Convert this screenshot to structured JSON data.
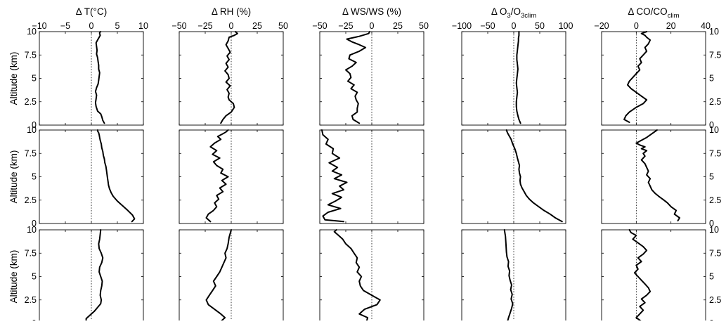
{
  "chart_data": {
    "type": "line",
    "layout": "3 rows x 5 columns of vertical profile panels",
    "ylabel": "Altitude (km)",
    "ylim": [
      0,
      10
    ],
    "yticks": [
      0,
      2.5,
      5,
      7.5,
      10
    ],
    "ytick_labels_left": [
      "0",
      "2.5",
      "5",
      "7.5",
      "10"
    ],
    "ytick_labels_right": [
      "0",
      "2.5",
      "5",
      "7.5",
      "10"
    ],
    "zero_line": "dotted vertical line at x = 0",
    "grid": false,
    "columns": [
      {
        "title": "Δ T(°C)",
        "xlim": [
          -10,
          10
        ],
        "xticks": [
          -10,
          -5,
          0,
          5,
          10
        ],
        "xtick_labels": [
          "−10",
          "−5",
          "0",
          "5",
          "10"
        ]
      },
      {
        "title": "Δ RH (%)",
        "xlim": [
          -50,
          50
        ],
        "xticks": [
          -50,
          -25,
          0,
          25,
          50
        ],
        "xtick_labels": [
          "−50",
          "−25",
          "0",
          "25",
          "50"
        ]
      },
      {
        "title": "Δ WS/WS (%)",
        "xlim": [
          -50,
          50
        ],
        "xticks": [
          -50,
          -25,
          0,
          25,
          50
        ],
        "xtick_labels": [
          "−50",
          "−25",
          "0",
          "25",
          "50"
        ]
      },
      {
        "title": "Δ O3/O3clim",
        "title_parts": [
          "Δ O",
          "3",
          "/O",
          "3clim"
        ],
        "xlim": [
          -100,
          100
        ],
        "xticks": [
          -100,
          -50,
          0,
          50,
          100
        ],
        "xtick_labels": [
          "−100",
          "−50",
          "0",
          "50",
          "100"
        ]
      },
      {
        "title": "Δ CO/COclim",
        "title_parts": [
          "Δ CO/CO",
          "clim"
        ],
        "xlim": [
          -20,
          40
        ],
        "xticks": [
          -20,
          0,
          20,
          40
        ],
        "xtick_labels": [
          "−20",
          "0",
          "20",
          "40"
        ]
      }
    ],
    "series": [
      {
        "row": 1,
        "col": 1,
        "x": [
          2.5,
          2.2,
          2.0,
          1.8,
          1.2,
          0.9,
          0.8,
          0.9,
          1.0,
          0.8,
          1.0,
          1.3,
          1.4,
          1.5,
          1.6,
          1.4,
          1.4,
          1.3,
          1.2,
          1.0,
          1.1,
          1.0,
          0.9,
          1.1,
          1.3,
          1.5,
          1.7,
          1.6,
          1.6,
          1.8
        ],
        "y": [
          0.2,
          0.5,
          0.9,
          1.2,
          1.5,
          2.0,
          2.4,
          2.8,
          3.2,
          3.6,
          4.0,
          4.4,
          4.8,
          5.2,
          5.6,
          6.0,
          6.4,
          6.8,
          7.2,
          7.6,
          8.0,
          8.4,
          8.8,
          9.0,
          9.2,
          9.4,
          9.6,
          9.8,
          9.9,
          10.0
        ]
      },
      {
        "row": 1,
        "col": 2,
        "x": [
          -10,
          -8,
          -5,
          0,
          3,
          2,
          -2,
          -3,
          -2,
          -4,
          -1,
          -5,
          -2,
          -3,
          -6,
          -3,
          -5,
          -2,
          -4,
          -1,
          -3,
          -5,
          -3,
          -2,
          3,
          6,
          4
        ],
        "y": [
          0.2,
          0.6,
          1.0,
          1.4,
          1.9,
          2.3,
          2.7,
          3.0,
          3.4,
          3.8,
          4.2,
          4.6,
          5.0,
          5.4,
          5.8,
          6.2,
          6.6,
          7.0,
          7.4,
          7.8,
          8.2,
          8.6,
          9.0,
          9.4,
          9.6,
          9.8,
          10.0
        ]
      },
      {
        "row": 1,
        "col": 3,
        "x": [
          -12,
          -18,
          -19,
          -14,
          -14,
          -13,
          -15,
          -16,
          -14,
          -20,
          -17,
          -23,
          -20,
          -21,
          -25,
          -19,
          -15,
          -22,
          -21,
          -12,
          -6,
          -12,
          -19,
          -24,
          -12,
          -3,
          -2
        ],
        "y": [
          0.2,
          0.6,
          1.0,
          1.4,
          1.8,
          2.3,
          2.7,
          3.1,
          3.5,
          3.9,
          4.3,
          4.7,
          5.1,
          5.5,
          5.9,
          6.3,
          6.7,
          7.1,
          7.5,
          7.9,
          8.3,
          8.6,
          8.9,
          9.2,
          9.5,
          9.8,
          10.0
        ]
      },
      {
        "row": 1,
        "col": 4,
        "x": [
          13,
          10,
          8,
          6,
          5,
          5,
          6,
          7,
          6,
          5,
          6,
          7,
          8,
          7,
          6,
          6,
          7,
          8,
          9,
          9,
          10,
          10
        ],
        "y": [
          0.2,
          0.6,
          1.0,
          1.5,
          2.0,
          2.5,
          3.0,
          3.5,
          4.0,
          4.5,
          5.0,
          5.5,
          6.0,
          6.5,
          7.0,
          7.5,
          8.0,
          8.5,
          9.0,
          9.3,
          9.6,
          10.0
        ]
      },
      {
        "row": 1,
        "col": 5,
        "x": [
          -4,
          -7,
          -6,
          -4,
          0,
          4,
          6,
          3,
          0,
          -3,
          -5,
          -4,
          -2,
          0,
          2,
          1,
          3,
          2,
          4,
          6,
          5,
          7,
          8,
          6,
          5,
          3,
          6
        ],
        "y": [
          0.3,
          0.6,
          1.0,
          1.4,
          1.9,
          2.3,
          2.7,
          3.1,
          3.5,
          3.9,
          4.3,
          4.7,
          5.1,
          5.5,
          5.9,
          6.3,
          6.7,
          7.1,
          7.5,
          7.9,
          8.3,
          8.7,
          9.1,
          9.4,
          9.6,
          9.8,
          10.0
        ]
      },
      {
        "row": 2,
        "col": 1,
        "x": [
          7.8,
          8.3,
          7.9,
          7.0,
          6.0,
          5.0,
          4.2,
          3.8,
          3.5,
          3.3,
          3.2,
          3.1,
          3.0,
          2.9,
          2.8,
          2.6,
          2.5,
          2.3,
          2.2,
          2.0,
          1.9,
          1.7,
          1.6,
          1.5,
          1.4,
          1.3,
          1.2,
          1.2
        ],
        "y": [
          0.2,
          0.5,
          0.9,
          1.4,
          1.9,
          2.4,
          2.9,
          3.3,
          3.7,
          4.1,
          4.5,
          4.9,
          5.3,
          5.7,
          6.1,
          6.5,
          6.9,
          7.3,
          7.7,
          8.1,
          8.5,
          8.9,
          9.2,
          9.5,
          9.7,
          9.8,
          9.9,
          10.0
        ]
      },
      {
        "row": 2,
        "col": 2,
        "x": [
          -20,
          -24,
          -22,
          -17,
          -14,
          -16,
          -12,
          -14,
          -8,
          -11,
          -5,
          -9,
          -3,
          -10,
          -8,
          -14,
          -17,
          -11,
          -18,
          -14,
          -20,
          -16,
          -10,
          -13,
          -8,
          -5,
          -3
        ],
        "y": [
          0.2,
          0.6,
          1.0,
          1.4,
          1.8,
          2.2,
          2.6,
          3.0,
          3.4,
          3.8,
          4.2,
          4.6,
          5.0,
          5.4,
          5.8,
          6.2,
          6.6,
          7.0,
          7.4,
          7.8,
          8.2,
          8.6,
          9.0,
          9.3,
          9.6,
          9.8,
          10.0
        ]
      },
      {
        "row": 2,
        "col": 3,
        "x": [
          -27,
          -45,
          -47,
          -42,
          -30,
          -42,
          -35,
          -29,
          -38,
          -27,
          -31,
          -24,
          -36,
          -29,
          -38,
          -33,
          -41,
          -31,
          -38,
          -37,
          -44,
          -42,
          -47,
          -48
        ],
        "y": [
          0.2,
          0.4,
          0.8,
          1.2,
          1.6,
          2.0,
          2.4,
          2.8,
          3.2,
          3.6,
          4.0,
          4.4,
          4.8,
          5.2,
          5.6,
          6.0,
          6.5,
          7.0,
          7.5,
          8.0,
          8.5,
          9.0,
          9.5,
          10.0
        ]
      },
      {
        "row": 2,
        "col": 4,
        "x": [
          93,
          80,
          70,
          58,
          48,
          38,
          30,
          24,
          20,
          16,
          13,
          12,
          13,
          11,
          10,
          11,
          9,
          7,
          5,
          2,
          -2,
          -5,
          -9,
          -12,
          -14
        ],
        "y": [
          0.2,
          0.6,
          1.0,
          1.4,
          1.8,
          2.2,
          2.6,
          3.0,
          3.4,
          3.8,
          4.2,
          4.6,
          5.0,
          5.4,
          5.8,
          6.2,
          6.6,
          7.0,
          7.5,
          8.0,
          8.5,
          9.0,
          9.4,
          9.7,
          10.0
        ]
      },
      {
        "row": 2,
        "col": 5,
        "x": [
          24,
          25,
          22,
          23,
          20,
          18,
          16,
          13,
          11,
          9,
          8,
          7,
          8,
          6,
          7,
          6,
          5,
          3,
          5,
          4,
          6,
          3,
          5,
          2,
          0,
          3,
          6,
          9,
          12
        ],
        "y": [
          0.3,
          0.6,
          1.0,
          1.4,
          1.8,
          2.2,
          2.5,
          2.9,
          3.2,
          3.6,
          4.0,
          4.4,
          4.8,
          5.2,
          5.6,
          6.0,
          6.4,
          6.8,
          7.2,
          7.5,
          7.8,
          8.0,
          8.2,
          8.4,
          8.6,
          8.9,
          9.2,
          9.6,
          10.0
        ]
      },
      {
        "row": 3,
        "col": 1,
        "x": [
          -1.0,
          -1.0,
          -0.2,
          0.6,
          1.2,
          1.8,
          1.9,
          1.7,
          1.8,
          2.0,
          2.1,
          1.8,
          1.5,
          1.6,
          2.0,
          2.2,
          1.9,
          1.5,
          1.4,
          1.6,
          1.8
        ],
        "y": [
          0.2,
          0.5,
          0.9,
          1.3,
          1.7,
          2.1,
          2.5,
          3.0,
          3.5,
          4.0,
          4.5,
          5.0,
          5.5,
          6.0,
          6.5,
          7.0,
          7.5,
          8.0,
          8.5,
          9.0,
          10.0
        ]
      },
      {
        "row": 3,
        "col": 2,
        "x": [
          -10,
          -6,
          -10,
          -16,
          -22,
          -24,
          -21,
          -18,
          -15,
          -17,
          -14,
          -11,
          -9,
          -7,
          -5,
          -6,
          -4,
          -3,
          -2,
          0
        ],
        "y": [
          0.2,
          0.6,
          1.0,
          1.5,
          2.0,
          2.5,
          3.0,
          3.5,
          4.0,
          4.5,
          5.0,
          5.5,
          6.0,
          6.5,
          7.0,
          7.5,
          8.0,
          8.5,
          9.2,
          10.0
        ]
      },
      {
        "row": 3,
        "col": 3,
        "x": [
          -5,
          -4,
          -12,
          -7,
          5,
          8,
          0,
          -8,
          -11,
          -12,
          -10,
          -14,
          -12,
          -15,
          -14,
          -17,
          -20,
          -25,
          -28,
          -33,
          -36,
          -34
        ],
        "y": [
          0.2,
          0.6,
          1.0,
          1.5,
          2.0,
          2.5,
          3.0,
          3.5,
          4.0,
          4.5,
          5.0,
          5.5,
          6.0,
          6.5,
          7.0,
          7.5,
          8.0,
          8.5,
          9.0,
          9.5,
          9.8,
          10.0
        ]
      },
      {
        "row": 3,
        "col": 4,
        "x": [
          -12,
          -10,
          -7,
          -4,
          -2,
          -5,
          -3,
          -6,
          -4,
          -7,
          -9,
          -8,
          -11,
          -10,
          -13,
          -14,
          -15,
          -16,
          -18
        ],
        "y": [
          0.2,
          0.6,
          1.1,
          1.6,
          2.1,
          2.6,
          3.1,
          3.6,
          4.1,
          4.6,
          5.1,
          5.6,
          6.1,
          6.6,
          7.1,
          7.6,
          8.5,
          9.3,
          10.0
        ]
      },
      {
        "row": 3,
        "col": 5,
        "x": [
          3,
          0,
          2,
          4,
          2,
          5,
          3,
          6,
          8,
          7,
          5,
          3,
          1,
          -1,
          1,
          0,
          3,
          1,
          4,
          6,
          4,
          1,
          -2,
          0,
          -3,
          -4
        ],
        "y": [
          0.2,
          0.6,
          1.0,
          1.4,
          1.8,
          2.2,
          2.6,
          3.0,
          3.4,
          3.8,
          4.2,
          4.6,
          5.0,
          5.4,
          5.8,
          6.2,
          6.6,
          7.0,
          7.4,
          7.8,
          8.2,
          8.6,
          9.0,
          9.4,
          9.7,
          10.0
        ]
      }
    ]
  }
}
